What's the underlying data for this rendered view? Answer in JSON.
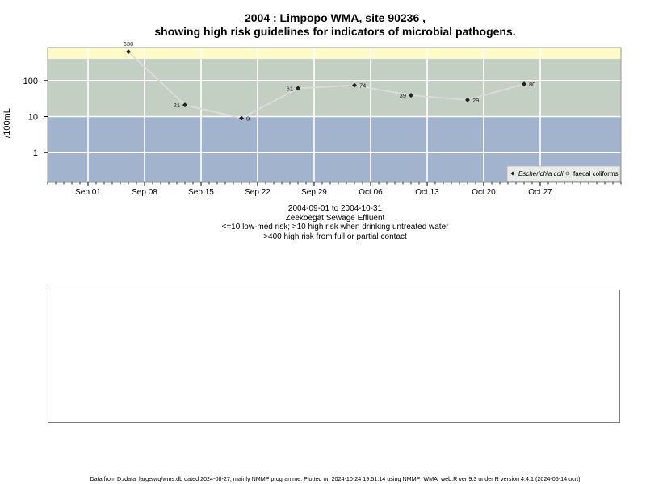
{
  "title_line1": "2004 : Limpopo WMA, site 90236 ,",
  "title_line2": "showing high risk guidelines for indicators of microbial pathogens.",
  "chart_data": {
    "type": "line",
    "ylabel": "/100mL",
    "y_scale": "log10",
    "ylim": [
      0.15,
      820
    ],
    "xlim": [
      "2004-08-27",
      "2004-11-06"
    ],
    "x_ticks": [
      {
        "date": "2004-09-01",
        "label": "Sep 01"
      },
      {
        "date": "2004-09-08",
        "label": "Sep 08"
      },
      {
        "date": "2004-09-15",
        "label": "Sep 15"
      },
      {
        "date": "2004-09-22",
        "label": "Sep 22"
      },
      {
        "date": "2004-09-29",
        "label": "Sep 29"
      },
      {
        "date": "2004-10-06",
        "label": "Oct 06"
      },
      {
        "date": "2004-10-13",
        "label": "Oct 13"
      },
      {
        "date": "2004-10-20",
        "label": "Oct 20"
      },
      {
        "date": "2004-10-27",
        "label": "Oct 27"
      }
    ],
    "y_ticks": [
      {
        "value": 1,
        "label": "1"
      },
      {
        "value": 10,
        "label": "10"
      },
      {
        "value": 100,
        "label": "100"
      }
    ],
    "bands": [
      {
        "from": 0.15,
        "to": 10,
        "color": "#a1b3cd"
      },
      {
        "from": 10,
        "to": 400,
        "color": "#c4cfc4"
      },
      {
        "from": 400,
        "to": 820,
        "color": "#fffbc8"
      }
    ],
    "grid": true,
    "legend_position": "bottom-right",
    "series": [
      {
        "name": "Escherichia coli",
        "marker": "diamond",
        "line_color": "#dcdcdc",
        "marker_color": "#222222",
        "points": [
          {
            "x": "2004-09-06",
            "y": 630,
            "label": "630"
          },
          {
            "x": "2004-09-13",
            "y": 21,
            "label": "21"
          },
          {
            "x": "2004-09-20",
            "y": 9,
            "label": "9"
          },
          {
            "x": "2004-09-27",
            "y": 61,
            "label": "61"
          },
          {
            "x": "2004-10-04",
            "y": 74,
            "label": "74"
          },
          {
            "x": "2004-10-11",
            "y": 39,
            "label": "39"
          },
          {
            "x": "2004-10-18",
            "y": 29,
            "label": "29"
          },
          {
            "x": "2004-10-25",
            "y": 80,
            "label": "80"
          }
        ]
      },
      {
        "name": "faecal coliforms",
        "marker": "circle",
        "marker_color": "#555555",
        "points": []
      }
    ]
  },
  "captions": [
    "2004-09-01 to 2004-10-31",
    "Zeekoegat Sewage Effluent",
    "<=10 low-med risk; >10 high risk when drinking untreated water",
    ">400 high risk from full or partial contact"
  ],
  "footer": "Data from D:/data_large/wq/wms.db dated 2024-08-27, mainly NMMP programme. Plotted on 2024-10-24 19:51:14 using NMMP_WMA_web.R ver 9.3 under R version 4.4.1 (2024-06-14 ucrt)"
}
